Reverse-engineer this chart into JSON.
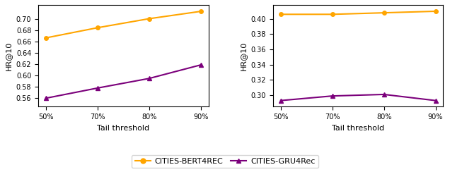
{
  "x_labels": [
    "50%",
    "70%",
    "80%",
    "90%"
  ],
  "left": {
    "orange": [
      0.667,
      0.685,
      0.701,
      0.714
    ],
    "purple": [
      0.56,
      0.578,
      0.595,
      0.619
    ]
  },
  "right": {
    "orange": [
      0.406,
      0.406,
      0.408,
      0.41
    ],
    "purple": [
      0.293,
      0.299,
      0.301,
      0.293
    ]
  },
  "left_ylim": [
    0.545,
    0.725
  ],
  "left_yticks": [
    0.56,
    0.58,
    0.6,
    0.62,
    0.64,
    0.66,
    0.68,
    0.7
  ],
  "right_ylim": [
    0.285,
    0.418
  ],
  "right_yticks": [
    0.3,
    0.32,
    0.34,
    0.36,
    0.38,
    0.4
  ],
  "xlabel": "Tail threshold",
  "ylabel": "HR@10",
  "orange_color": "#FFA500",
  "purple_color": "#7B007B",
  "legend_labels": [
    "CITIES-BERT4REC",
    "CITIES-GRU4Rec"
  ],
  "axis_fontsize": 8,
  "tick_fontsize": 7,
  "legend_fontsize": 8
}
